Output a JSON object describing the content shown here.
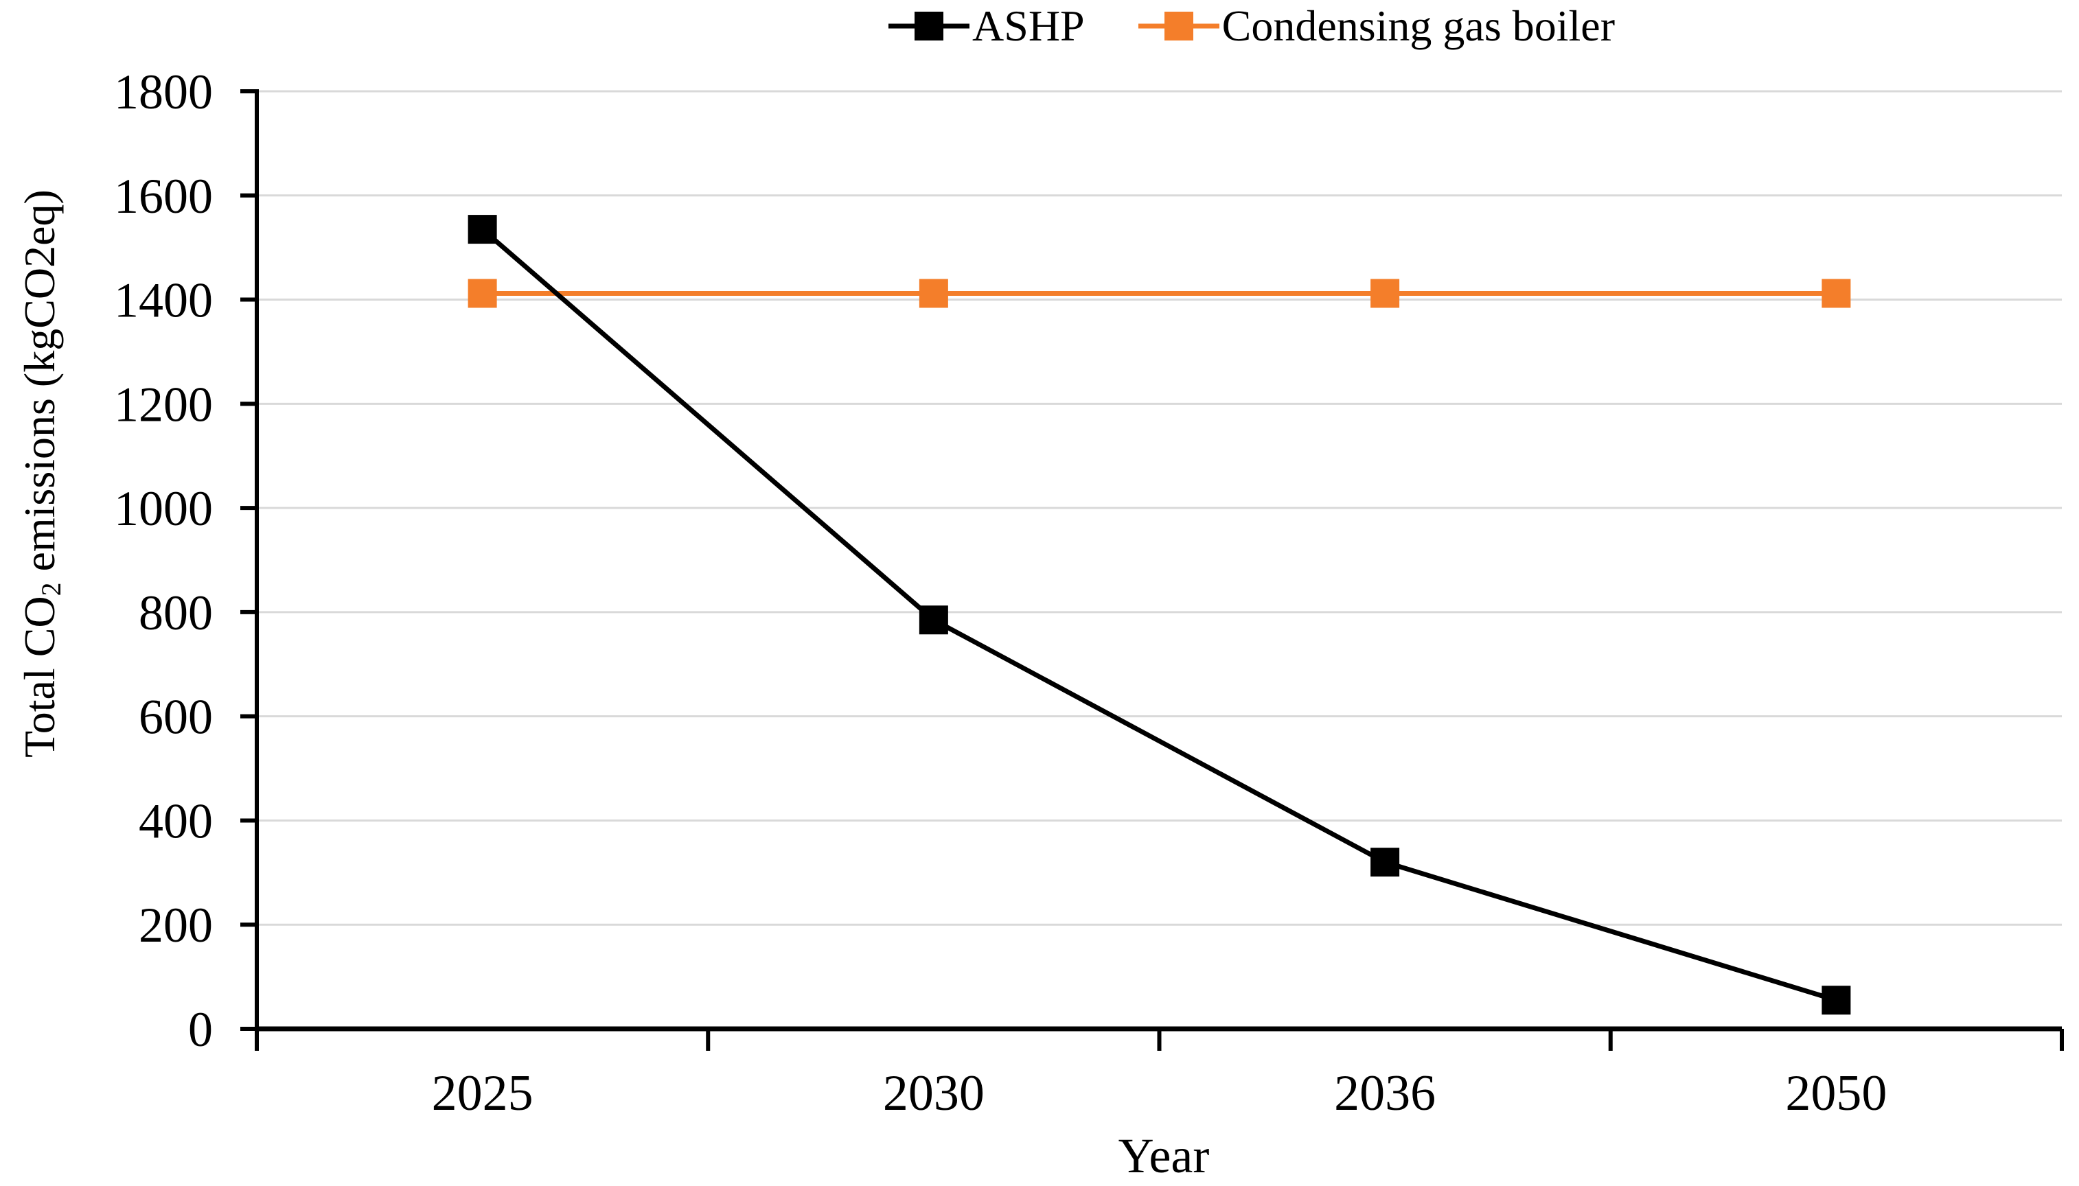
{
  "chart_data": {
    "type": "line",
    "categories": [
      "2025",
      "2030",
      "2036",
      "2050"
    ],
    "series": [
      {
        "name": "ASHP",
        "color": "#000000",
        "values": [
          1535,
          785,
          320,
          55
        ]
      },
      {
        "name": "Condensing gas boiler",
        "color": "#F47E2A",
        "values": [
          1412,
          1412,
          1412,
          1412
        ]
      }
    ],
    "title": "",
    "xlabel": "Year",
    "ylabel": "Total CO₂ emissions (kgCO2eq)",
    "ylabel_parts": {
      "pre": "Total CO",
      "sub": "2",
      "post": " emissions (kgCO2eq)"
    },
    "ylim": [
      0,
      1800
    ],
    "ytick_step": 200,
    "ytick_labels": [
      "0",
      "200",
      "400",
      "600",
      "800",
      "1000",
      "1200",
      "1400",
      "1600",
      "1800"
    ],
    "grid": "horizontal",
    "gridline_color": "#D9D9D9",
    "axis_color": "#000000",
    "legend_position": "top",
    "marker": "square"
  }
}
